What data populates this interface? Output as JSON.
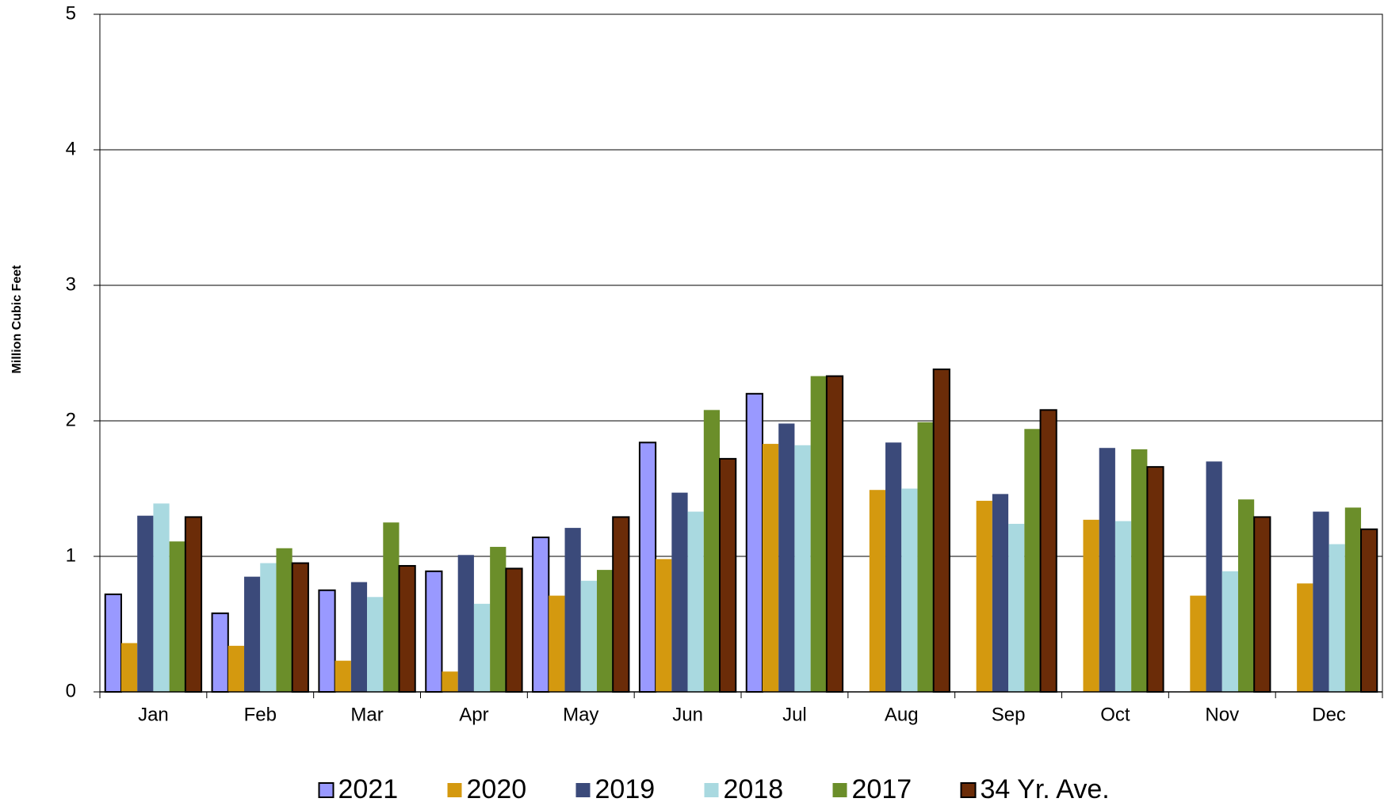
{
  "chart_data": {
    "type": "bar",
    "y_label": "Million Cubic Feet",
    "categories": [
      "Jan",
      "Feb",
      "Mar",
      "Apr",
      "May",
      "Jun",
      "Jul",
      "Aug",
      "Sep",
      "Oct",
      "Nov",
      "Dec"
    ],
    "series": [
      {
        "name": "2021",
        "color": "#9999ff",
        "edgecolor": "#000000",
        "values": [
          0.72,
          0.58,
          0.75,
          0.89,
          1.14,
          1.84,
          2.2,
          null,
          null,
          null,
          null,
          null
        ]
      },
      {
        "name": "2020",
        "color": "#d4990f",
        "values": [
          0.36,
          0.34,
          0.23,
          0.15,
          0.71,
          0.98,
          1.83,
          1.49,
          1.41,
          1.27,
          0.71,
          0.8
        ]
      },
      {
        "name": "2019",
        "color": "#3b4a7a",
        "values": [
          1.3,
          0.85,
          0.81,
          1.01,
          1.21,
          1.47,
          1.98,
          1.84,
          1.46,
          1.8,
          1.7,
          1.33
        ]
      },
      {
        "name": "2018",
        "color": "#a9d9e0",
        "values": [
          1.39,
          0.95,
          0.7,
          0.65,
          0.82,
          1.33,
          1.82,
          1.5,
          1.24,
          1.26,
          0.89,
          1.09
        ]
      },
      {
        "name": "2017",
        "color": "#6b8e2a",
        "values": [
          1.11,
          1.06,
          1.25,
          1.07,
          0.9,
          2.08,
          2.33,
          1.99,
          1.94,
          1.79,
          1.42,
          1.36
        ]
      },
      {
        "name": "34 Yr. Ave.",
        "color": "#6b2c08",
        "edgecolor": "#000000",
        "values": [
          1.29,
          0.95,
          0.93,
          0.91,
          1.29,
          1.72,
          2.33,
          2.38,
          2.08,
          1.66,
          1.29,
          1.2
        ]
      }
    ],
    "ylim": [
      0,
      5
    ],
    "yticks": [
      0,
      1,
      2,
      3,
      4,
      5
    ],
    "grid": true,
    "legend": "bottom"
  }
}
